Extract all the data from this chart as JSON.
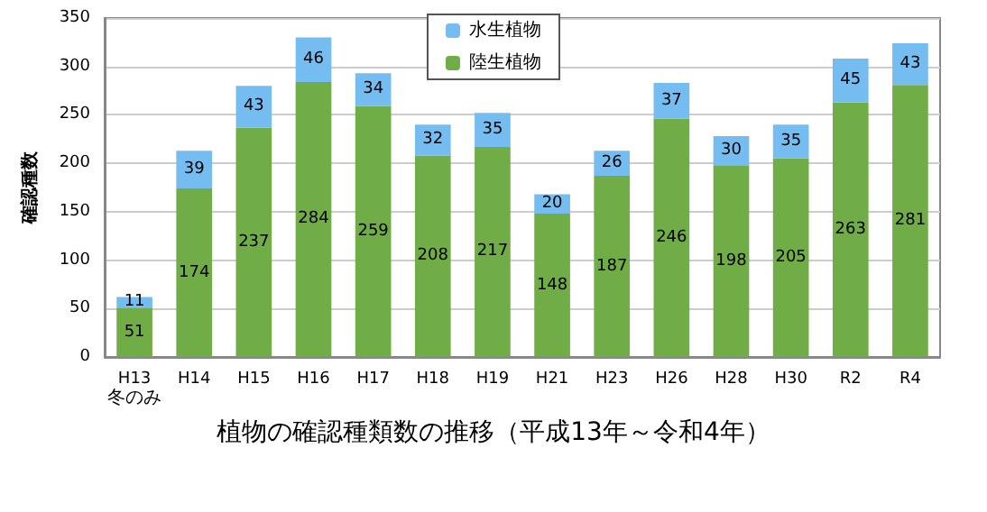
{
  "chart_data": {
    "type": "bar",
    "title": "植物の確認種類数の推移（平成13年～令和4年）",
    "ylabel": "確認種数",
    "categories": [
      "H13",
      "H14",
      "H15",
      "H16",
      "H17",
      "H18",
      "H19",
      "H21",
      "H23",
      "H26",
      "H28",
      "H30",
      "R2",
      "R4"
    ],
    "series": [
      {
        "name": "陸生植物",
        "color": "#70ad47",
        "values": [
          51,
          174,
          237,
          284,
          259,
          208,
          217,
          148,
          187,
          246,
          198,
          205,
          263,
          281
        ]
      },
      {
        "name": "水生植物",
        "color": "#75bdf0",
        "values": [
          11,
          39,
          43,
          46,
          34,
          32,
          35,
          20,
          26,
          37,
          30,
          35,
          45,
          43
        ]
      }
    ],
    "stacked": true,
    "ylim": [
      0,
      350
    ],
    "yticks": [
      0,
      50,
      100,
      150,
      200,
      250,
      300,
      350
    ],
    "grid": "y",
    "legend": "top",
    "data_labels": true,
    "annotations": [
      "冬のみ"
    ]
  }
}
